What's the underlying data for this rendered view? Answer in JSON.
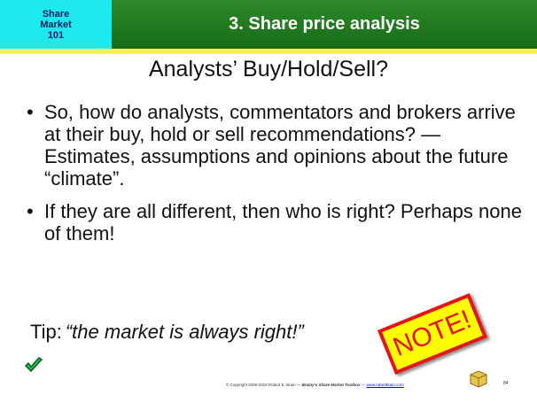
{
  "header": {
    "badge": [
      "Share",
      "Market",
      "101"
    ],
    "title": "3. Share price analysis"
  },
  "slide": {
    "title": "Analysts’ Buy/Hold/Sell?",
    "bullets": [
      "So, how do analysts, commentators and brokers arrive at their buy, hold or sell recommendations? — Estimates, assumptions and opinions about the future “climate”.",
      "If they are all different, then who is right? Perhaps none of them!"
    ],
    "tip": {
      "label": "Tip:",
      "text": "“the market is always right!”"
    },
    "stamp": "NOTE!"
  },
  "footer": {
    "copyright": "© Copyright 2009-2019 Robert E. Brain — ",
    "book": "Brainy’s Share Market Toolbox",
    "sep": " — ",
    "url": "www.robertbrain.com",
    "page": "84"
  }
}
